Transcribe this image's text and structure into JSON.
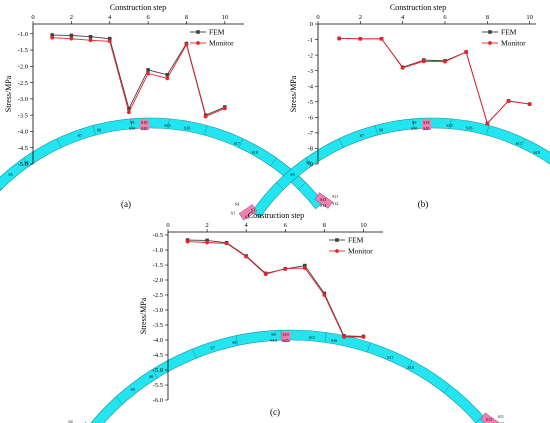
{
  "series_names": [
    "FEM",
    "Monitor"
  ],
  "colors": {
    "fem": "#404040",
    "monitor": "#e8252a",
    "arch": "#18e4f0",
    "arch_edge": "#0b8f9a",
    "support": "#f27fb0"
  },
  "chart_data": [
    {
      "type": "line",
      "panel_label": "(a)",
      "title": "Construction step",
      "ylabel": "Stress/MPa",
      "xlim": [
        0,
        11
      ],
      "ylim": [
        -5.0,
        -0.7
      ],
      "xticks": [
        0,
        2,
        4,
        6,
        8,
        10
      ],
      "yticks": [
        -1.0,
        -1.5,
        -2.0,
        -2.5,
        -3.0,
        -3.5,
        -4.0,
        -4.5,
        -5.0
      ],
      "x": [
        1,
        2,
        3,
        4,
        5,
        6,
        7,
        8,
        9,
        10
      ],
      "series": [
        {
          "name": "FEM",
          "values": [
            -1.04,
            -1.05,
            -1.09,
            -1.15,
            -3.3,
            -2.11,
            -2.26,
            -1.3,
            -3.5,
            -3.25
          ]
        },
        {
          "name": "Monitor",
          "values": [
            -1.12,
            -1.15,
            -1.2,
            -1.23,
            -3.41,
            -2.22,
            -2.37,
            -1.33,
            -3.54,
            -3.29
          ]
        }
      ],
      "legend_position": "top-right",
      "sensor_labels": [
        "S1",
        "S2",
        "S3",
        "S4",
        "S5",
        "S6",
        "S7",
        "S8",
        "S9",
        "S10",
        "S11",
        "S12",
        "S13",
        "S14",
        "S15",
        "S16",
        "S17",
        "S18",
        "S19",
        "S20"
      ]
    },
    {
      "type": "line",
      "panel_label": "(b)",
      "title": "Construction step",
      "ylabel": "Stress/MPa",
      "xlim": [
        0,
        10.3
      ],
      "ylim": [
        -9,
        0
      ],
      "xticks": [
        0,
        2,
        4,
        6,
        8,
        10
      ],
      "yticks": [
        0,
        -1,
        -2,
        -3,
        -4,
        -5,
        -6,
        -7,
        -8,
        -9
      ],
      "x": [
        1,
        2,
        3,
        4,
        5,
        6,
        7,
        8,
        9,
        10
      ],
      "series": [
        {
          "name": "FEM",
          "values": [
            -0.93,
            -0.95,
            -0.95,
            -2.78,
            -2.32,
            -2.37,
            -1.8,
            -6.4,
            -4.95,
            -5.15
          ]
        },
        {
          "name": "Monitor",
          "values": [
            -0.93,
            -0.95,
            -0.95,
            -2.82,
            -2.4,
            -2.42,
            -1.8,
            -6.38,
            -4.95,
            -5.15
          ]
        }
      ],
      "legend_position": "top-right",
      "sensor_labels": [
        "S1",
        "S2",
        "S3",
        "S4",
        "S5",
        "S6",
        "S7",
        "S8",
        "S9",
        "S10",
        "S11",
        "S12",
        "S13",
        "S14",
        "S15",
        "S16",
        "S17",
        "S18",
        "S19",
        "S20"
      ]
    },
    {
      "type": "line",
      "panel_label": "(c)",
      "title": "Construction step",
      "ylabel": "Stress/MPa",
      "xlim": [
        0,
        11
      ],
      "ylim": [
        -6.0,
        -0.4
      ],
      "xticks": [
        0,
        2,
        4,
        6,
        8,
        10
      ],
      "yticks": [
        -0.5,
        -1.0,
        -1.5,
        -2.0,
        -2.5,
        -3.0,
        -3.5,
        -4.0,
        -4.5,
        -5.0,
        -5.5,
        -6.0
      ],
      "x": [
        1,
        2,
        3,
        4,
        5,
        6,
        7,
        8,
        9,
        10
      ],
      "series": [
        {
          "name": "FEM",
          "values": [
            -0.67,
            -0.68,
            -0.76,
            -1.2,
            -1.78,
            -1.63,
            -1.52,
            -2.45,
            -3.86,
            -3.88
          ]
        },
        {
          "name": "Monitor",
          "values": [
            -0.72,
            -0.75,
            -0.78,
            -1.22,
            -1.81,
            -1.62,
            -1.6,
            -2.5,
            -3.9,
            -3.9
          ]
        }
      ],
      "legend_position": "top-right",
      "sensor_labels": [
        "S1",
        "S2",
        "S3",
        "S4",
        "S5",
        "S6",
        "S7",
        "S8",
        "S9",
        "S10",
        "S11",
        "S12",
        "S13",
        "S14",
        "S15",
        "S16",
        "S17",
        "S18",
        "S19",
        "S20"
      ]
    }
  ]
}
